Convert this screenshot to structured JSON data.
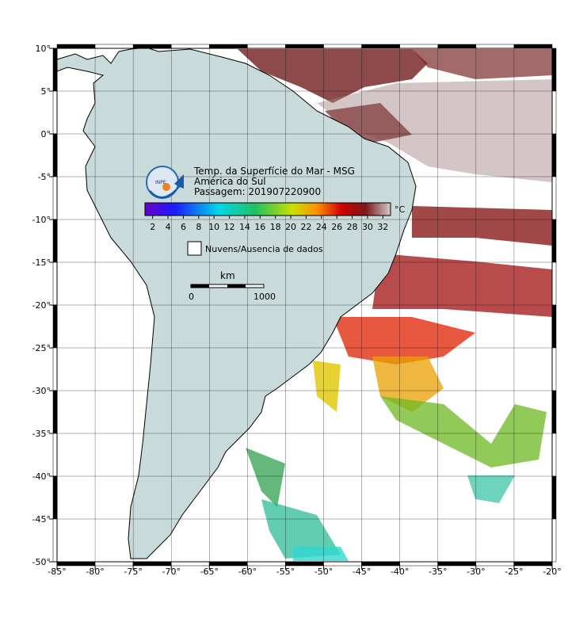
{
  "header": {
    "title": "Temp. da Superfície do Mar - MSG",
    "subtitle": "América do Sul",
    "pass": "Passagem: 201907220900",
    "logo": "INPE"
  },
  "colorbar": {
    "unit": "°C",
    "range": [
      1,
      33
    ],
    "ticks": [
      2,
      4,
      6,
      8,
      10,
      12,
      14,
      16,
      18,
      20,
      22,
      24,
      26,
      28,
      30,
      32
    ]
  },
  "legend": {
    "label": "Nuvens/Ausencia de dados"
  },
  "scale_bar": {
    "unit": "km",
    "labels": [
      "0",
      "1000"
    ]
  },
  "map": {
    "xlim": [
      -85,
      -20
    ],
    "ylim": [
      -50,
      10
    ],
    "xticks": [
      {
        "value": -85,
        "label": "-85°"
      },
      {
        "value": -80,
        "label": "-80°"
      },
      {
        "value": -75,
        "label": "-75°"
      },
      {
        "value": -70,
        "label": "-70°"
      },
      {
        "value": -65,
        "label": "-65°"
      },
      {
        "value": -60,
        "label": "-60°"
      },
      {
        "value": -55,
        "label": "-55°"
      },
      {
        "value": -50,
        "label": "-50°"
      },
      {
        "value": -45,
        "label": "-45°"
      },
      {
        "value": -40,
        "label": "-40°"
      },
      {
        "value": -35,
        "label": "-35°"
      },
      {
        "value": -30,
        "label": "-30°"
      },
      {
        "value": -25,
        "label": "-25°"
      },
      {
        "value": -20,
        "label": "-20°"
      }
    ],
    "yticks": [
      {
        "value": 10,
        "label": "10°"
      },
      {
        "value": 5,
        "label": "5°"
      },
      {
        "value": 0,
        "label": "0°"
      },
      {
        "value": -5,
        "label": "-5°"
      },
      {
        "value": -10,
        "label": "-10°"
      },
      {
        "value": -15,
        "label": "-15°"
      },
      {
        "value": -20,
        "label": "-20°"
      },
      {
        "value": -25,
        "label": "-25°"
      },
      {
        "value": -30,
        "label": "-30°"
      },
      {
        "value": -35,
        "label": "-35°"
      },
      {
        "value": -40,
        "label": "-40°"
      },
      {
        "value": -45,
        "label": "-45°"
      },
      {
        "value": -50,
        "label": "-50°"
      }
    ]
  }
}
